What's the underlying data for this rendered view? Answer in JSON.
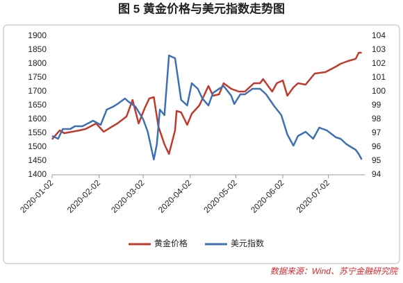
{
  "chart_data": {
    "type": "line",
    "title": "图 5  黄金价格与美元指数走势图",
    "source": "数据来源：Wind、苏宁金融研究院",
    "xlim": [
      "2020-01-02",
      "2020-07-26"
    ],
    "xticks": [
      "2020-01-02",
      "2020-02-02",
      "2020-03-02",
      "2020-04-02",
      "2020-05-02",
      "2020-06-02",
      "2020-07-02"
    ],
    "ylim": [
      1400,
      1900
    ],
    "yticks": [
      1400,
      1450,
      1500,
      1550,
      1600,
      1650,
      1700,
      1750,
      1800,
      1850,
      1900
    ],
    "y2lim": [
      94,
      104
    ],
    "y2ticks": [
      94,
      95,
      96,
      97,
      98,
      99,
      100,
      101,
      102,
      103,
      104
    ],
    "legend": "bottom",
    "series": [
      {
        "name": "黄金价格",
        "color": "#c0392b",
        "x": [
          "2020-01-02",
          "2020-01-07",
          "2020-01-10",
          "2020-01-15",
          "2020-01-20",
          "2020-01-24",
          "2020-01-31",
          "2020-02-05",
          "2020-02-10",
          "2020-02-14",
          "2020-02-20",
          "2020-02-24",
          "2020-02-28",
          "2020-03-03",
          "2020-03-06",
          "2020-03-09",
          "2020-03-12",
          "2020-03-16",
          "2020-03-19",
          "2020-03-23",
          "2020-03-24",
          "2020-03-27",
          "2020-03-31",
          "2020-04-03",
          "2020-04-08",
          "2020-04-14",
          "2020-04-17",
          "2020-04-21",
          "2020-04-24",
          "2020-04-29",
          "2020-05-04",
          "2020-05-08",
          "2020-05-14",
          "2020-05-18",
          "2020-05-20",
          "2020-05-26",
          "2020-05-29",
          "2020-06-02",
          "2020-06-05",
          "2020-06-09",
          "2020-06-12",
          "2020-06-17",
          "2020-06-23",
          "2020-06-30",
          "2020-07-07",
          "2020-07-10",
          "2020-07-15",
          "2020-07-20",
          "2020-07-22",
          "2020-07-24"
        ],
        "values": [
          1528,
          1560,
          1550,
          1555,
          1560,
          1565,
          1585,
          1555,
          1572,
          1585,
          1610,
          1670,
          1585,
          1640,
          1675,
          1680,
          1575,
          1510,
          1475,
          1560,
          1630,
          1625,
          1580,
          1620,
          1650,
          1720,
          1685,
          1690,
          1730,
          1710,
          1700,
          1700,
          1730,
          1730,
          1745,
          1700,
          1730,
          1740,
          1685,
          1715,
          1730,
          1725,
          1765,
          1770,
          1790,
          1800,
          1810,
          1818,
          1840,
          1840
        ]
      },
      {
        "name": "美元指数",
        "color": "#3c6fb4",
        "axis": "y2",
        "x": [
          "2020-01-02",
          "2020-01-06",
          "2020-01-09",
          "2020-01-14",
          "2020-01-17",
          "2020-01-22",
          "2020-01-29",
          "2020-02-03",
          "2020-02-07",
          "2020-02-11",
          "2020-02-14",
          "2020-02-19",
          "2020-02-21",
          "2020-02-26",
          "2020-03-02",
          "2020-03-05",
          "2020-03-09",
          "2020-03-11",
          "2020-03-13",
          "2020-03-16",
          "2020-03-19",
          "2020-03-23",
          "2020-03-27",
          "2020-03-31",
          "2020-04-03",
          "2020-04-07",
          "2020-04-10",
          "2020-04-14",
          "2020-04-17",
          "2020-04-21",
          "2020-04-24",
          "2020-04-29",
          "2020-05-01",
          "2020-05-05",
          "2020-05-08",
          "2020-05-13",
          "2020-05-18",
          "2020-05-22",
          "2020-05-27",
          "2020-06-01",
          "2020-06-05",
          "2020-06-09",
          "2020-06-12",
          "2020-06-17",
          "2020-06-22",
          "2020-06-26",
          "2020-07-01",
          "2020-07-07",
          "2020-07-10",
          "2020-07-14",
          "2020-07-17",
          "2020-07-20",
          "2020-07-22",
          "2020-07-24"
        ],
        "values": [
          96.8,
          96.6,
          97.3,
          97.3,
          97.5,
          97.5,
          97.9,
          97.6,
          98.7,
          98.9,
          99.1,
          99.5,
          99.3,
          98.9,
          98.0,
          97.1,
          95.1,
          96.2,
          98.7,
          98.3,
          102.6,
          102.4,
          99.4,
          99.0,
          100.6,
          100.2,
          99.5,
          99.0,
          99.9,
          100.2,
          100.4,
          99.7,
          99.1,
          99.8,
          99.8,
          100.2,
          100.2,
          99.8,
          99.0,
          98.3,
          96.9,
          96.1,
          96.8,
          97.1,
          96.6,
          97.4,
          97.2,
          96.7,
          96.6,
          96.2,
          96.0,
          95.8,
          95.5,
          95.1
        ]
      }
    ]
  }
}
